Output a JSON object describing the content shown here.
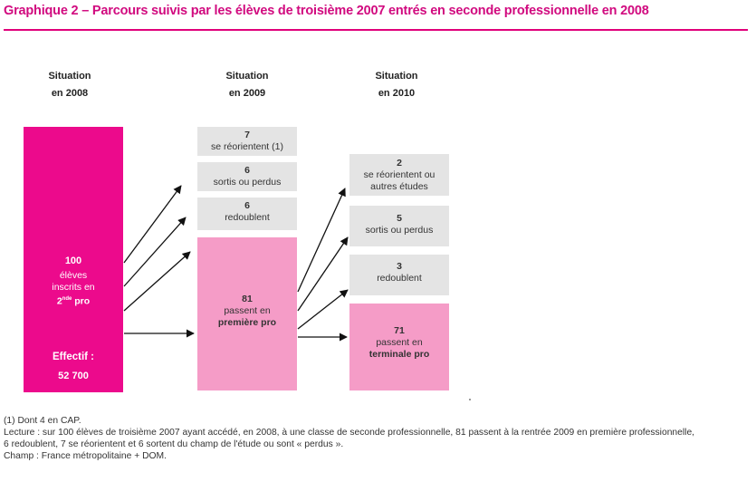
{
  "title": "Graphique 2 – Parcours suivis par les élèves de troisième 2007 entrés en seconde professionnelle en 2008",
  "columns": [
    {
      "line1": "Situation",
      "line2": "en 2008"
    },
    {
      "line1": "Situation",
      "line2": "en 2009"
    },
    {
      "line1": "Situation",
      "line2": "en 2010"
    }
  ],
  "start": {
    "value": "100",
    "l1": "élèves",
    "l2": "inscrits en",
    "l3_num": "2",
    "l3_sup": "nde",
    "l3_rest": " pro",
    "effectif_label": "Effectif :",
    "effectif_value": "52 700"
  },
  "y2009": {
    "reorient": {
      "value": "7",
      "label": "se réorientent (1)"
    },
    "sortis": {
      "value": "6",
      "label": "sortis ou perdus"
    },
    "redoublent": {
      "value": "6",
      "label": "redoublent"
    },
    "premiere": {
      "value": "81",
      "label1": "passent en",
      "label2": "première pro"
    }
  },
  "y2010": {
    "reorient": {
      "value": "2",
      "label1": "se réorientent ou",
      "label2": "autres études"
    },
    "sortis": {
      "value": "5",
      "label": "sortis ou perdus"
    },
    "redoublent": {
      "value": "3",
      "label": "redoublent"
    },
    "terminale": {
      "value": "71",
      "label1": "passent en",
      "label2": "terminale pro"
    }
  },
  "notes": {
    "n1": "(1) Dont 4 en CAP.",
    "lecture1": "Lecture : sur 100 élèves de troisième 2007 ayant accédé, en 2008, à une classe de seconde professionnelle, 81 passent à la rentrée 2009 en première professionnelle,",
    "lecture2": "6 redoublent, 7 se réorientent et 6 sortent du champ de l'étude ou sont « perdus ».",
    "champ": "Champ : France métropolitaine + DOM."
  },
  "colors": {
    "title": "#d10a7f",
    "magenta": "#ec0a8c",
    "pink": "#f59cc7",
    "grey": "#e4e4e4"
  }
}
